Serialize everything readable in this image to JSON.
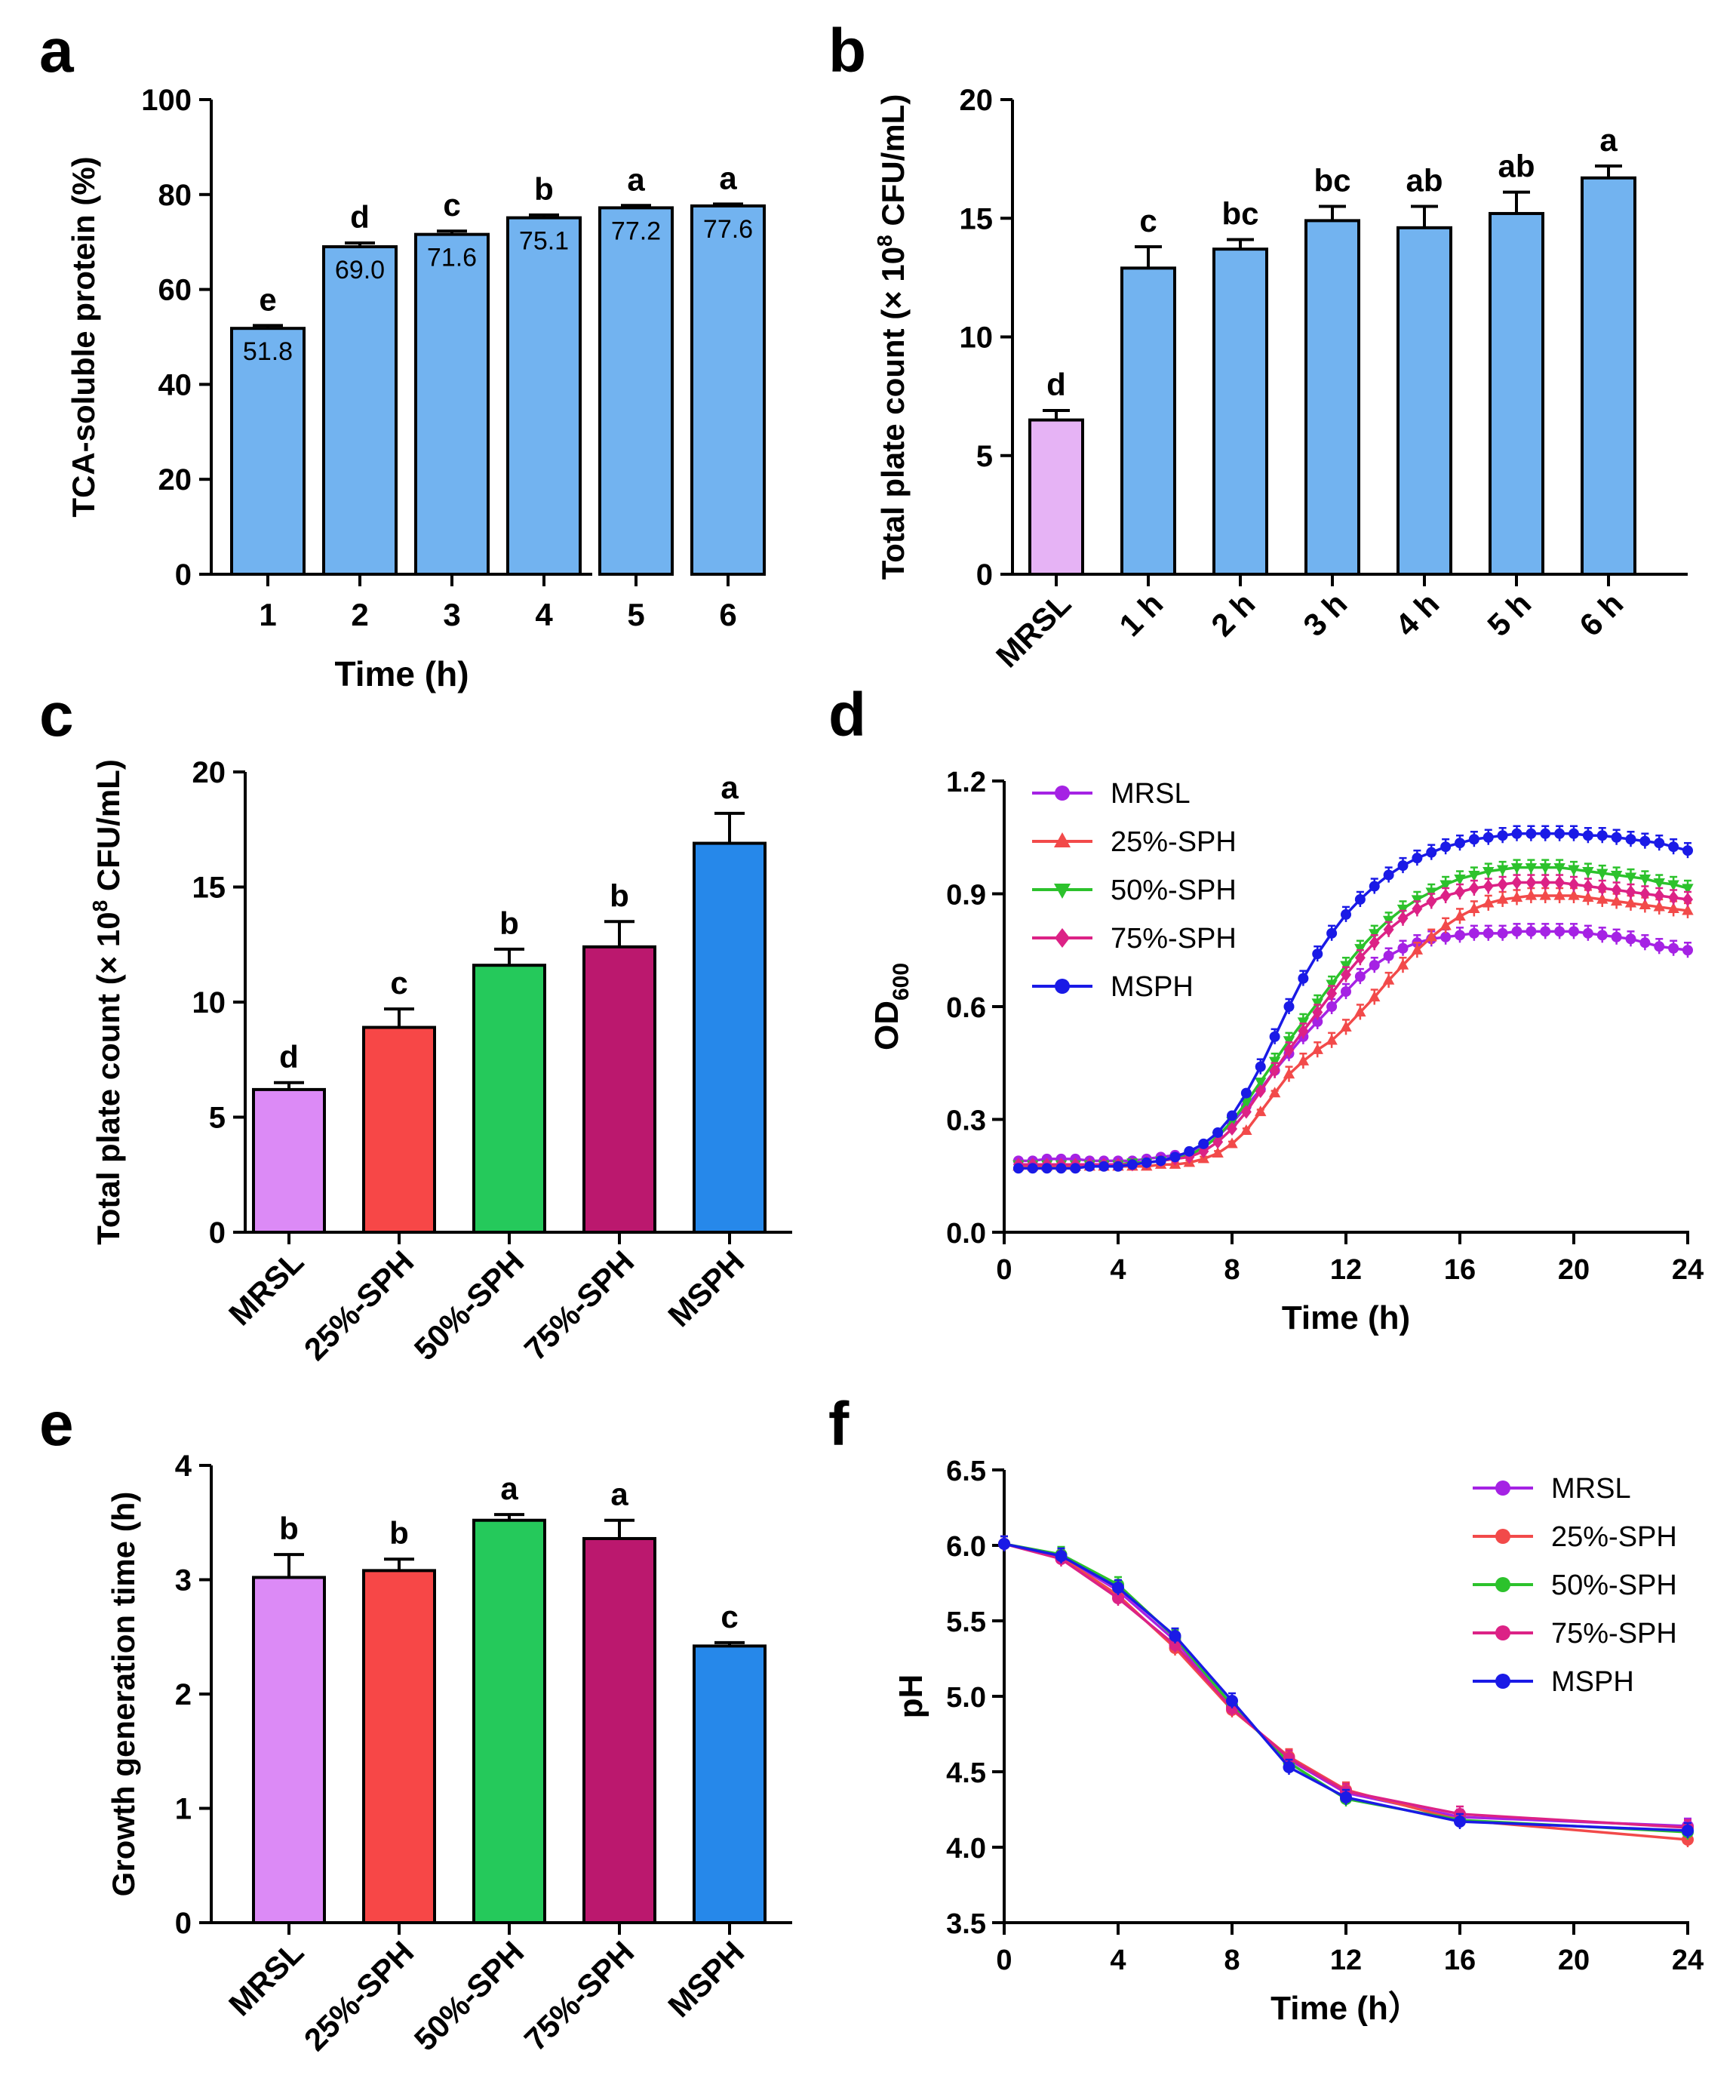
{
  "colors": {
    "axis": "#000000",
    "light_blue": "#72b3f0",
    "lavender": "#e6b3f5",
    "violet": "#dc8af6",
    "red": "#f74747",
    "green": "#25c95b",
    "magenta": "#bb186e",
    "blue": "#2688ea",
    "series_mrsl": "#a522e4",
    "series_25": "#f24a4a",
    "series_50": "#2cc22c",
    "series_75": "#dc2286",
    "series_mssph": "#1a1ae6"
  },
  "chart_data": [
    {
      "panel": "a",
      "type": "bar",
      "xlabel": "Time (h)",
      "ylabel": "TCA-soluble protein (%)",
      "ylim": [
        0,
        100
      ],
      "yticks": [
        "0",
        "20",
        "40",
        "60",
        "80",
        "100"
      ],
      "categories": [
        "1",
        "2",
        "3",
        "4",
        "5",
        "6"
      ],
      "values": [
        51.8,
        69.0,
        71.6,
        75.1,
        77.2,
        77.6
      ],
      "errors": [
        0.6,
        0.8,
        0.7,
        0.6,
        0.5,
        0.4
      ],
      "value_labels": [
        "51.8",
        "69.0",
        "71.6",
        "75.1",
        "77.2",
        "77.6"
      ],
      "letters": [
        "e",
        "d",
        "c",
        "b",
        "a",
        "a"
      ],
      "bar_colors": [
        "light_blue",
        "light_blue",
        "light_blue",
        "light_blue",
        "light_blue",
        "light_blue"
      ]
    },
    {
      "panel": "b",
      "type": "bar",
      "xlabel": "",
      "ylabel_parts": [
        "Total plate count (× 10",
        "8",
        " CFU/mL)"
      ],
      "ylim": [
        0,
        20
      ],
      "yticks": [
        "0",
        "5",
        "10",
        "15",
        "20"
      ],
      "categories": [
        "MRSL",
        "1 h",
        "2 h",
        "3 h",
        "4 h",
        "5 h",
        "6 h"
      ],
      "values": [
        6.5,
        12.9,
        13.7,
        14.9,
        14.6,
        15.2,
        16.7
      ],
      "errors": [
        0.4,
        0.9,
        0.4,
        0.6,
        0.9,
        0.9,
        0.5
      ],
      "letters": [
        "d",
        "c",
        "bc",
        "bc",
        "ab",
        "ab",
        "a"
      ],
      "bar_colors": [
        "lavender",
        "light_blue",
        "light_blue",
        "light_blue",
        "light_blue",
        "light_blue",
        "light_blue"
      ]
    },
    {
      "panel": "c",
      "type": "bar",
      "xlabel": "",
      "ylabel_parts": [
        "Total plate count (× 10",
        "8",
        " CFU/mL)"
      ],
      "ylim": [
        0,
        20
      ],
      "yticks": [
        "0",
        "5",
        "10",
        "15",
        "20"
      ],
      "categories": [
        "MRSL",
        "25%-SPH",
        "50%-SPH",
        "75%-SPH",
        "MSPH"
      ],
      "values": [
        6.2,
        8.9,
        11.6,
        12.4,
        16.9
      ],
      "errors": [
        0.3,
        0.8,
        0.7,
        1.1,
        1.3
      ],
      "letters": [
        "d",
        "c",
        "b",
        "b",
        "a"
      ],
      "bar_colors": [
        "violet",
        "red",
        "green",
        "magenta",
        "blue"
      ]
    },
    {
      "panel": "d",
      "type": "line",
      "xlabel": "Time (h)",
      "ylabel_parts": [
        "OD",
        "600"
      ],
      "xlim": [
        0,
        24
      ],
      "ylim": [
        0,
        1.2
      ],
      "xticks": [
        "0",
        "4",
        "8",
        "12",
        "16",
        "20",
        "24"
      ],
      "yticks": [
        "0.0",
        "0.3",
        "0.6",
        "0.9",
        "1.2"
      ],
      "legend": [
        "MRSL",
        "25%-SPH",
        "50%-SPH",
        "75%-SPH",
        "MSPH"
      ],
      "markers": [
        "circle",
        "triangle-up",
        "triangle-down",
        "diamond",
        "circle"
      ],
      "series_colors": [
        "series_mrsl",
        "series_25",
        "series_50",
        "series_75",
        "series_mssph"
      ],
      "series": [
        {
          "name": "MRSL",
          "x": [
            0.5,
            1,
            1.5,
            2,
            2.5,
            3,
            3.5,
            4,
            4.5,
            5,
            5.5,
            6,
            6.5,
            7,
            7.5,
            8,
            8.5,
            9,
            9.5,
            10,
            10.5,
            11,
            11.5,
            12,
            12.5,
            13,
            13.5,
            14,
            14.5,
            15,
            15.5,
            16,
            16.5,
            17,
            17.5,
            18,
            18.5,
            19,
            19.5,
            20,
            20.5,
            21,
            21.5,
            22,
            22.5,
            23,
            23.5,
            24
          ],
          "y": [
            0.19,
            0.19,
            0.195,
            0.195,
            0.195,
            0.19,
            0.19,
            0.19,
            0.19,
            0.195,
            0.2,
            0.205,
            0.21,
            0.225,
            0.255,
            0.29,
            0.335,
            0.38,
            0.43,
            0.475,
            0.52,
            0.56,
            0.6,
            0.64,
            0.68,
            0.71,
            0.735,
            0.755,
            0.77,
            0.78,
            0.785,
            0.79,
            0.795,
            0.795,
            0.795,
            0.8,
            0.8,
            0.8,
            0.8,
            0.8,
            0.795,
            0.79,
            0.785,
            0.78,
            0.77,
            0.76,
            0.755,
            0.75
          ]
        },
        {
          "name": "25%-SPH",
          "x": [
            0.5,
            1,
            1.5,
            2,
            2.5,
            3,
            3.5,
            4,
            4.5,
            5,
            5.5,
            6,
            6.5,
            7,
            7.5,
            8,
            8.5,
            9,
            9.5,
            10,
            10.5,
            11,
            11.5,
            12,
            12.5,
            13,
            13.5,
            14,
            14.5,
            15,
            15.5,
            16,
            16.5,
            17,
            17.5,
            18,
            18.5,
            19,
            19.5,
            20,
            20.5,
            21,
            21.5,
            22,
            22.5,
            23,
            23.5,
            24
          ],
          "y": [
            0.175,
            0.175,
            0.175,
            0.175,
            0.175,
            0.175,
            0.175,
            0.175,
            0.175,
            0.175,
            0.18,
            0.18,
            0.185,
            0.195,
            0.21,
            0.235,
            0.27,
            0.32,
            0.37,
            0.42,
            0.455,
            0.485,
            0.51,
            0.545,
            0.585,
            0.625,
            0.67,
            0.71,
            0.75,
            0.785,
            0.815,
            0.84,
            0.86,
            0.875,
            0.885,
            0.89,
            0.895,
            0.895,
            0.895,
            0.895,
            0.89,
            0.885,
            0.88,
            0.875,
            0.87,
            0.865,
            0.86,
            0.855
          ]
        },
        {
          "name": "50%-SPH",
          "x": [
            0.5,
            1,
            1.5,
            2,
            2.5,
            3,
            3.5,
            4,
            4.5,
            5,
            5.5,
            6,
            6.5,
            7,
            7.5,
            8,
            8.5,
            9,
            9.5,
            10,
            10.5,
            11,
            11.5,
            12,
            12.5,
            13,
            13.5,
            14,
            14.5,
            15,
            15.5,
            16,
            16.5,
            17,
            17.5,
            18,
            18.5,
            19,
            19.5,
            20,
            20.5,
            21,
            21.5,
            22,
            22.5,
            23,
            23.5,
            24
          ],
          "y": [
            0.18,
            0.18,
            0.18,
            0.18,
            0.18,
            0.18,
            0.18,
            0.18,
            0.185,
            0.185,
            0.19,
            0.195,
            0.205,
            0.225,
            0.255,
            0.295,
            0.345,
            0.4,
            0.455,
            0.51,
            0.56,
            0.61,
            0.66,
            0.71,
            0.755,
            0.795,
            0.83,
            0.86,
            0.885,
            0.905,
            0.925,
            0.94,
            0.95,
            0.96,
            0.965,
            0.97,
            0.97,
            0.97,
            0.97,
            0.965,
            0.96,
            0.955,
            0.95,
            0.945,
            0.94,
            0.93,
            0.925,
            0.915
          ]
        },
        {
          "name": "75%-SPH",
          "x": [
            0.5,
            1,
            1.5,
            2,
            2.5,
            3,
            3.5,
            4,
            4.5,
            5,
            5.5,
            6,
            6.5,
            7,
            7.5,
            8,
            8.5,
            9,
            9.5,
            10,
            10.5,
            11,
            11.5,
            12,
            12.5,
            13,
            13.5,
            14,
            14.5,
            15,
            15.5,
            16,
            16.5,
            17,
            17.5,
            18,
            18.5,
            19,
            19.5,
            20,
            20.5,
            21,
            21.5,
            22,
            22.5,
            23,
            23.5,
            24
          ],
          "y": [
            0.18,
            0.18,
            0.18,
            0.18,
            0.18,
            0.18,
            0.18,
            0.18,
            0.18,
            0.185,
            0.19,
            0.195,
            0.2,
            0.215,
            0.24,
            0.275,
            0.32,
            0.375,
            0.43,
            0.485,
            0.535,
            0.585,
            0.635,
            0.685,
            0.73,
            0.77,
            0.805,
            0.835,
            0.86,
            0.88,
            0.895,
            0.905,
            0.915,
            0.92,
            0.925,
            0.93,
            0.93,
            0.93,
            0.93,
            0.925,
            0.92,
            0.915,
            0.91,
            0.905,
            0.9,
            0.895,
            0.89,
            0.885
          ]
        },
        {
          "name": "MSPH",
          "x": [
            0.5,
            1,
            1.5,
            2,
            2.5,
            3,
            3.5,
            4,
            4.5,
            5,
            5.5,
            6,
            6.5,
            7,
            7.5,
            8,
            8.5,
            9,
            9.5,
            10,
            10.5,
            11,
            11.5,
            12,
            12.5,
            13,
            13.5,
            14,
            14.5,
            15,
            15.5,
            16,
            16.5,
            17,
            17.5,
            18,
            18.5,
            19,
            19.5,
            20,
            20.5,
            21,
            21.5,
            22,
            22.5,
            23,
            23.5,
            24
          ],
          "y": [
            0.17,
            0.17,
            0.17,
            0.17,
            0.17,
            0.175,
            0.175,
            0.175,
            0.18,
            0.185,
            0.19,
            0.2,
            0.215,
            0.235,
            0.265,
            0.31,
            0.37,
            0.44,
            0.52,
            0.6,
            0.675,
            0.74,
            0.795,
            0.845,
            0.885,
            0.92,
            0.95,
            0.975,
            0.995,
            1.01,
            1.025,
            1.035,
            1.045,
            1.05,
            1.055,
            1.06,
            1.06,
            1.06,
            1.06,
            1.06,
            1.055,
            1.055,
            1.05,
            1.045,
            1.04,
            1.035,
            1.025,
            1.015
          ]
        }
      ]
    },
    {
      "panel": "e",
      "type": "bar",
      "xlabel": "",
      "ylabel": "Growth generation time (h)",
      "ylim": [
        0,
        4
      ],
      "yticks": [
        "0",
        "1",
        "2",
        "3",
        "4"
      ],
      "categories": [
        "MRSL",
        "25%-SPH",
        "50%-SPH",
        "75%-SPH",
        "MSPH"
      ],
      "values": [
        3.02,
        3.08,
        3.52,
        3.36,
        2.42
      ],
      "errors": [
        0.2,
        0.1,
        0.05,
        0.16,
        0.03
      ],
      "letters": [
        "b",
        "b",
        "a",
        "a",
        "c"
      ],
      "bar_colors": [
        "violet",
        "red",
        "green",
        "magenta",
        "blue"
      ]
    },
    {
      "panel": "f",
      "type": "line",
      "xlabel": "Time (h）",
      "ylabel": "pH",
      "xlim": [
        0,
        24
      ],
      "ylim": [
        3.5,
        6.5
      ],
      "xticks": [
        "0",
        "4",
        "8",
        "12",
        "16",
        "20",
        "24"
      ],
      "yticks": [
        "3.5",
        "4.0",
        "4.5",
        "5.0",
        "5.5",
        "6.0",
        "6.5"
      ],
      "legend": [
        "MRSL",
        "25%-SPH",
        "50%-SPH",
        "75%-SPH",
        "MSPH"
      ],
      "markers": [
        "circle",
        "circle",
        "circle",
        "circle",
        "circle"
      ],
      "series_colors": [
        "series_mrsl",
        "series_25",
        "series_50",
        "series_75",
        "series_mssph"
      ],
      "series": [
        {
          "name": "MRSL",
          "x": [
            0,
            2,
            4,
            6,
            8,
            10,
            12,
            16,
            24
          ],
          "y": [
            6.01,
            5.93,
            5.7,
            5.37,
            4.93,
            4.58,
            4.36,
            4.2,
            4.14
          ]
        },
        {
          "name": "25%-SPH",
          "x": [
            0,
            2,
            4,
            6,
            8,
            10,
            12,
            16,
            24
          ],
          "y": [
            6.01,
            5.92,
            5.67,
            5.32,
            4.91,
            4.6,
            4.38,
            4.18,
            4.05
          ]
        },
        {
          "name": "50%-SPH",
          "x": [
            0,
            2,
            4,
            6,
            8,
            10,
            12,
            16,
            24
          ],
          "y": [
            6.01,
            5.94,
            5.74,
            5.39,
            4.94,
            4.56,
            4.32,
            4.18,
            4.1
          ]
        },
        {
          "name": "75%-SPH",
          "x": [
            0,
            2,
            4,
            6,
            8,
            10,
            12,
            16,
            24
          ],
          "y": [
            6.01,
            5.91,
            5.65,
            5.34,
            4.92,
            4.59,
            4.37,
            4.22,
            4.13
          ]
        },
        {
          "name": "MSPH",
          "x": [
            0,
            2,
            4,
            6,
            8,
            10,
            12,
            16,
            24
          ],
          "y": [
            6.01,
            5.93,
            5.72,
            5.4,
            4.97,
            4.53,
            4.33,
            4.17,
            4.11
          ]
        }
      ]
    }
  ]
}
